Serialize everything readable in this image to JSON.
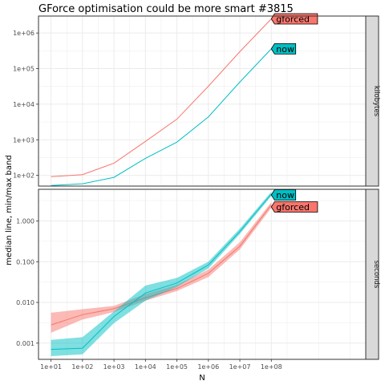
{
  "colors": {
    "gforced": "#F8766D",
    "now": "#00BFC4",
    "strip_fill": "#D9D9D9",
    "grid": "#EBEBEB"
  },
  "chart_data": {
    "type": "line",
    "title": "GForce optimisation could be more smart #3815",
    "xlabel": "N",
    "ylabel": "median line, min/max band",
    "x_scale": "log10",
    "x": [
      10,
      100,
      1000,
      10000,
      100000,
      1000000,
      10000000,
      100000000
    ],
    "x_tick_labels": [
      "1e+01",
      "1e+02",
      "1e+03",
      "1e+04",
      "1e+05",
      "1e+06",
      "1e+07",
      "1e+08"
    ],
    "xlim": [
      4,
      100000000000
    ],
    "facets": [
      {
        "strip_label": "kilobytes",
        "y_scale": "log10",
        "ylim": [
          50,
          3000000
        ],
        "y_ticks": [
          100,
          1000,
          10000,
          100000,
          1000000
        ],
        "y_tick_labels": [
          "1e+02",
          "1e+03",
          "1e+04",
          "1e+05",
          "1e+06"
        ],
        "series": [
          {
            "name": "gforced",
            "median": [
              92,
              105,
              220,
              900,
              3800,
              32000,
              300000,
              2500000
            ],
            "min": [
              92,
              105,
              220,
              900,
              3800,
              32000,
              300000,
              2500000
            ],
            "max": [
              92,
              105,
              220,
              900,
              3800,
              32000,
              300000,
              2500000
            ],
            "end_label": "gforced"
          },
          {
            "name": "now",
            "median": [
              52,
              58,
              88,
              300,
              860,
              4400,
              42000,
              360000
            ],
            "min": [
              52,
              58,
              88,
              300,
              860,
              4400,
              42000,
              360000
            ],
            "max": [
              52,
              58,
              88,
              300,
              860,
              4400,
              42000,
              360000
            ],
            "end_label": "now"
          }
        ]
      },
      {
        "strip_label": "seconds",
        "y_scale": "log10",
        "ylim": [
          0.0004,
          6
        ],
        "y_ticks": [
          0.001,
          0.01,
          0.1,
          1
        ],
        "y_tick_labels": [
          "0.001",
          "0.010",
          "0.100",
          "1.000"
        ],
        "series": [
          {
            "name": "gforced",
            "median": [
              0.0028,
              0.005,
              0.007,
              0.013,
              0.022,
              0.052,
              0.24,
              2.5
            ],
            "min": [
              0.0018,
              0.0038,
              0.0058,
              0.011,
              0.019,
              0.042,
              0.2,
              2.1
            ],
            "max": [
              0.0056,
              0.0068,
              0.0082,
              0.016,
              0.027,
              0.064,
              0.3,
              2.9
            ],
            "end_label": "gforced"
          },
          {
            "name": "now",
            "median": [
              0.0007,
              0.00075,
              0.0045,
              0.017,
              0.03,
              0.083,
              0.55,
              4.6
            ],
            "min": [
              0.00048,
              0.00053,
              0.0031,
              0.011,
              0.024,
              0.068,
              0.48,
              4.1
            ],
            "max": [
              0.0012,
              0.0014,
              0.006,
              0.026,
              0.04,
              0.1,
              0.65,
              5.2
            ],
            "end_label": "now"
          }
        ]
      }
    ]
  }
}
